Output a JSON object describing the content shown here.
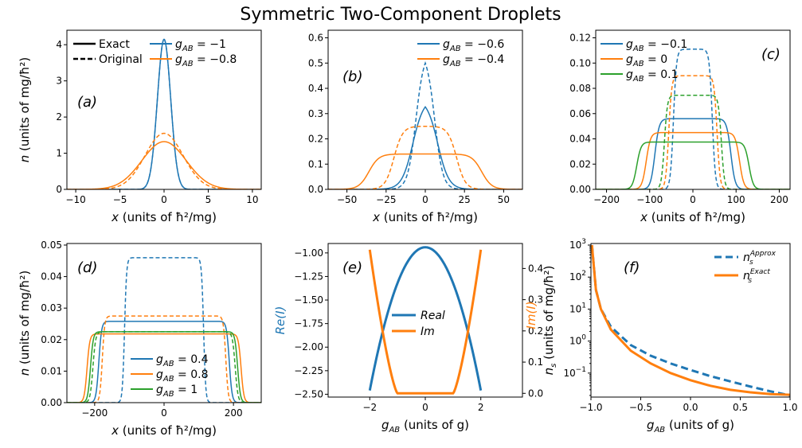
{
  "figure": {
    "title": "Symmetric Two-Component Droplets"
  },
  "colors": {
    "blue": "#1f77b4",
    "orange": "#ff7f0e",
    "green": "#2ca02c",
    "black": "#000000"
  },
  "chart_data": [
    {
      "panel": "(a)",
      "type": "line",
      "xlabel": "x (units of ħ²/mg)",
      "ylabel": "n (units of mg/ħ²)",
      "xlim": [
        -11,
        11
      ],
      "ylim": [
        0,
        4.4
      ],
      "xticks": [
        -10,
        -5,
        0,
        5,
        10
      ],
      "xtick_labels": [
        "−10",
        "−5",
        "0",
        "5",
        "10"
      ],
      "yticks": [
        0,
        1,
        2,
        3,
        4
      ],
      "ytick_labels": [
        "0",
        "1",
        "2",
        "3",
        "4"
      ],
      "legend": {
        "style_entries": [
          {
            "label": "Exact",
            "style": "solid"
          },
          {
            "label": "Original",
            "style": "dashed"
          }
        ],
        "series_entries": [
          "gAB = −1",
          "gAB = −0.8"
        ]
      },
      "series": [
        {
          "name": "gAB = −1",
          "color": "blue",
          "style": "solid",
          "shape": "gauss",
          "peak": 4.15,
          "width": 0.75
        },
        {
          "name": "gAB = −1",
          "color": "blue",
          "style": "dashed",
          "shape": "gauss",
          "peak": 4.15,
          "width": 0.75
        },
        {
          "name": "gAB = −0.8",
          "color": "orange",
          "style": "solid",
          "shape": "gauss",
          "peak": 1.32,
          "width": 2.5
        },
        {
          "name": "gAB = −0.8",
          "color": "orange",
          "style": "dashed",
          "shape": "gauss",
          "peak": 1.55,
          "width": 2.15
        }
      ]
    },
    {
      "panel": "(b)",
      "type": "line",
      "xlabel": "x (units of ħ²/mg)",
      "ylabel": "",
      "xlim": [
        -62,
        62
      ],
      "ylim": [
        0,
        0.63
      ],
      "xticks": [
        -50,
        -25,
        0,
        25,
        50
      ],
      "xtick_labels": [
        "−50",
        "−25",
        "0",
        "25",
        "50"
      ],
      "yticks": [
        0,
        0.1,
        0.2,
        0.3,
        0.4,
        0.5,
        0.6
      ],
      "ytick_labels": [
        "0.0",
        "0.1",
        "0.2",
        "0.3",
        "0.4",
        "0.5",
        "0.6"
      ],
      "legend": {
        "series_entries": [
          "gAB = −0.6",
          "gAB = −0.4"
        ]
      },
      "series": [
        {
          "name": "gAB = −0.6",
          "color": "blue",
          "style": "solid",
          "shape": "flat",
          "plateau": 0.36,
          "half_width": 8,
          "edge": 3.5
        },
        {
          "name": "gAB = −0.6",
          "color": "blue",
          "style": "dashed",
          "shape": "flat",
          "plateau": 0.55,
          "half_width": 6,
          "edge": 2.6
        },
        {
          "name": "gAB = −0.4",
          "color": "orange",
          "style": "solid",
          "shape": "flat",
          "plateau": 0.14,
          "half_width": 36,
          "edge": 3.2
        },
        {
          "name": "gAB = −0.4",
          "color": "orange",
          "style": "dashed",
          "shape": "flat",
          "plateau": 0.25,
          "half_width": 20,
          "edge": 2.8
        }
      ]
    },
    {
      "panel": "(c)",
      "type": "line",
      "xlabel": "x (units of ħ²/mg)",
      "ylabel": "",
      "xlim": [
        -225,
        225
      ],
      "ylim": [
        0,
        0.126
      ],
      "xticks": [
        -200,
        -100,
        0,
        100,
        200
      ],
      "xtick_labels": [
        "−200",
        "−100",
        "0",
        "100",
        "200"
      ],
      "yticks": [
        0,
        0.02,
        0.04,
        0.06,
        0.08,
        0.1,
        0.12
      ],
      "ytick_labels": [
        "0.00",
        "0.02",
        "0.04",
        "0.06",
        "0.08",
        "0.10",
        "0.12"
      ],
      "legend": {
        "series_entries": [
          "gAB = −0.1",
          "gAB = 0",
          "gAB = 0.1"
        ]
      },
      "series": [
        {
          "name": "gAB = −0.1",
          "color": "blue",
          "style": "solid",
          "shape": "flat",
          "plateau": 0.056,
          "half_width": 88,
          "edge": 5
        },
        {
          "name": "gAB = −0.1",
          "color": "blue",
          "style": "dashed",
          "shape": "flat",
          "plateau": 0.111,
          "half_width": 45,
          "edge": 3.5
        },
        {
          "name": "gAB = 0",
          "color": "orange",
          "style": "solid",
          "shape": "flat",
          "plateau": 0.045,
          "half_width": 108,
          "edge": 5
        },
        {
          "name": "gAB = 0",
          "color": "orange",
          "style": "dashed",
          "shape": "flat",
          "plateau": 0.09,
          "half_width": 56,
          "edge": 3.5
        },
        {
          "name": "gAB = 0.1",
          "color": "green",
          "style": "solid",
          "shape": "flat",
          "plateau": 0.0375,
          "half_width": 130,
          "edge": 5
        },
        {
          "name": "gAB = 0.1",
          "color": "green",
          "style": "dashed",
          "shape": "flat",
          "plateau": 0.0745,
          "half_width": 66,
          "edge": 3.5
        }
      ]
    },
    {
      "panel": "(d)",
      "type": "line",
      "xlabel": "x (units of ħ²/mg)",
      "ylabel": "n (units of mg/ħ²)",
      "xlim": [
        -280,
        280
      ],
      "ylim": [
        0,
        0.0505
      ],
      "xticks": [
        -200,
        0,
        200
      ],
      "xtick_labels": [
        "−200",
        "0",
        "200"
      ],
      "yticks": [
        0,
        0.01,
        0.02,
        0.03,
        0.04,
        0.05
      ],
      "ytick_labels": [
        "0.00",
        "0.01",
        "0.02",
        "0.03",
        "0.04",
        "0.05"
      ],
      "legend": {
        "series_entries": [
          "gAB = 0.4",
          "gAB = 0.8",
          "gAB = 1"
        ]
      },
      "series": [
        {
          "name": "gAB = 0.4",
          "color": "blue",
          "style": "solid",
          "shape": "flat",
          "plateau": 0.0258,
          "half_width": 188,
          "edge": 4
        },
        {
          "name": "gAB = 0.4",
          "color": "blue",
          "style": "dashed",
          "shape": "flat",
          "plateau": 0.046,
          "half_width": 114,
          "edge": 3
        },
        {
          "name": "gAB = 0.8",
          "color": "orange",
          "style": "solid",
          "shape": "flat",
          "plateau": 0.0218,
          "half_width": 222,
          "edge": 4
        },
        {
          "name": "gAB = 0.8",
          "color": "orange",
          "style": "dashed",
          "shape": "flat",
          "plateau": 0.0275,
          "half_width": 178,
          "edge": 3.5
        },
        {
          "name": "gAB = 1",
          "color": "green",
          "style": "solid",
          "shape": "flat",
          "plateau": 0.0225,
          "half_width": 212,
          "edge": 4
        },
        {
          "name": "gAB = 1",
          "color": "green",
          "style": "dashed",
          "shape": "flat",
          "plateau": 0.0225,
          "half_width": 205,
          "edge": 4
        }
      ]
    },
    {
      "panel": "(e)",
      "type": "line",
      "xlabel": "gAB (units of g)",
      "ylabel": "Re(I)",
      "ylabel_right": "Im(I)",
      "xlim": [
        -3.5,
        3.5
      ],
      "ylim": [
        -2.53,
        -0.9
      ],
      "ylim_right": [
        -0.012,
        0.48
      ],
      "xticks": [
        -2,
        0,
        2
      ],
      "xtick_labels": [
        "−2",
        "0",
        "2"
      ],
      "yticks": [
        -2.5,
        -2.25,
        -2.0,
        -1.75,
        -1.5,
        -1.25,
        -1.0
      ],
      "ytick_labels": [
        "−2.50",
        "−2.25",
        "−2.00",
        "−1.75",
        "−1.50",
        "−1.25",
        "−1.00"
      ],
      "yticks_right": [
        0,
        0.1,
        0.2,
        0.3,
        0.4
      ],
      "ytick_labels_right": [
        "0.0",
        "0.1",
        "0.2",
        "0.3",
        "0.4"
      ],
      "legend": {
        "series_entries": [
          "Real",
          "Im"
        ]
      },
      "series": [
        {
          "name": "Real",
          "color": "blue",
          "axis": "left",
          "x": [
            -2,
            -1.5,
            -1,
            -0.5,
            0,
            0.5,
            1,
            1.5,
            2
          ],
          "y": [
            -2.46,
            -1.85,
            -1.35,
            -1.06,
            -0.94,
            -1.06,
            -1.35,
            -1.85,
            -2.46
          ]
        },
        {
          "name": "Im",
          "color": "orange",
          "axis": "right",
          "x": [
            -2,
            -1.75,
            -1.5,
            -1.25,
            -1,
            1,
            1.25,
            1.5,
            1.75,
            2
          ],
          "y": [
            0.46,
            0.33,
            0.2,
            0.09,
            0.0,
            0.0,
            0.09,
            0.2,
            0.33,
            0.46
          ]
        }
      ]
    },
    {
      "panel": "(f)",
      "type": "line",
      "xlabel": "gAB (units of g)",
      "ylabel": "ns (units of mg/ħ²)",
      "xlim": [
        -1,
        1
      ],
      "ylim_log10": [
        -1.75,
        3.05
      ],
      "yscale": "log",
      "xticks": [
        -1,
        -0.5,
        0,
        0.5,
        1
      ],
      "xtick_labels": [
        "−1.0",
        "−0.5",
        "0.0",
        "0.5",
        "1.0"
      ],
      "yticks_exp": [
        -1,
        0,
        1,
        2,
        3
      ],
      "legend": {
        "series_entries": [
          "ns Approx",
          "ns Exact"
        ]
      },
      "series": [
        {
          "name": "ns Approx",
          "color": "blue",
          "style": "dashed",
          "x": [
            -0.99,
            -0.95,
            -0.9,
            -0.8,
            -0.6,
            -0.4,
            -0.2,
            0,
            0.2,
            0.4,
            0.6,
            0.8,
            1.0
          ],
          "y": [
            1000,
            40,
            10,
            2.8,
            0.75,
            0.35,
            0.2,
            0.125,
            0.08,
            0.055,
            0.038,
            0.027,
            0.02
          ]
        },
        {
          "name": "ns Exact",
          "color": "orange",
          "style": "solid",
          "x": [
            -0.99,
            -0.95,
            -0.9,
            -0.8,
            -0.6,
            -0.4,
            -0.2,
            0,
            0.2,
            0.4,
            0.6,
            0.8,
            1.0
          ],
          "y": [
            1000,
            40,
            10,
            2.3,
            0.5,
            0.2,
            0.1,
            0.06,
            0.04,
            0.03,
            0.025,
            0.022,
            0.021
          ]
        }
      ]
    }
  ]
}
